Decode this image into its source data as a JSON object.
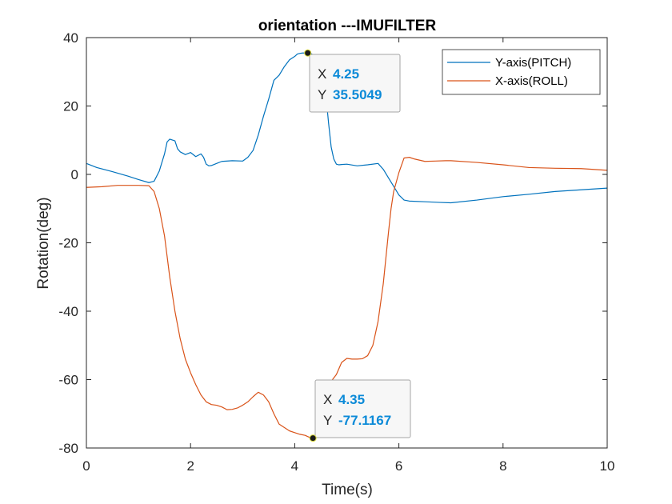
{
  "chart_data": {
    "type": "line",
    "title": "orientation ---IMUFILTER",
    "xlabel": "Time(s)",
    "ylabel": "Rotation(deg)",
    "xlim": [
      0,
      10
    ],
    "ylim": [
      -80,
      40
    ],
    "xticks": [
      0,
      2,
      4,
      6,
      8,
      10
    ],
    "yticks": [
      40,
      20,
      0,
      -20,
      -40,
      -60,
      -80
    ],
    "grid": false,
    "legend_position": "top-right",
    "series": [
      {
        "name": "Y-axis(PITCH)",
        "color": "#0072BD",
        "x": [
          0,
          0.2,
          0.5,
          0.8,
          1.0,
          1.2,
          1.3,
          1.4,
          1.5,
          1.55,
          1.6,
          1.7,
          1.75,
          1.8,
          1.9,
          2.0,
          2.1,
          2.2,
          2.25,
          2.3,
          2.35,
          2.4,
          2.5,
          2.6,
          2.8,
          3.0,
          3.1,
          3.2,
          3.3,
          3.4,
          3.5,
          3.6,
          3.7,
          3.8,
          3.9,
          4.0,
          4.05,
          4.1,
          4.15,
          4.2,
          4.25,
          4.3,
          4.35,
          4.45,
          4.5,
          4.6,
          4.65,
          4.7,
          4.75,
          4.8,
          4.85,
          4.9,
          5.0,
          5.2,
          5.4,
          5.6,
          5.7,
          5.8,
          5.9,
          6.0,
          6.1,
          6.2,
          6.5,
          6.8,
          7.0,
          7.5,
          8.0,
          8.5,
          9.0,
          9.5,
          10.0
        ],
        "values": [
          3.2,
          2.0,
          0.8,
          -0.5,
          -1.5,
          -2.4,
          -2.0,
          1.0,
          6.0,
          9.5,
          10.3,
          9.8,
          7.5,
          6.6,
          5.8,
          6.4,
          5.2,
          6.0,
          5.0,
          3.0,
          2.5,
          2.6,
          3.2,
          3.8,
          4.0,
          3.9,
          5.0,
          7.0,
          11.5,
          17.0,
          22.0,
          27.5,
          29.0,
          31.5,
          33.5,
          34.5,
          35.2,
          35.4,
          35.5,
          35.5,
          35.5,
          35.4,
          35.0,
          33.0,
          30.0,
          23.0,
          15.0,
          8.0,
          4.5,
          3.0,
          2.8,
          2.9,
          3.0,
          2.5,
          2.8,
          3.2,
          1.5,
          -1.0,
          -3.5,
          -6.0,
          -7.5,
          -7.8,
          -8.0,
          -8.2,
          -8.3,
          -7.5,
          -6.5,
          -5.8,
          -5.0,
          -4.5,
          -4.0
        ]
      },
      {
        "name": "X-axis(ROLL)",
        "color": "#D95319",
        "x": [
          0,
          0.3,
          0.6,
          1.0,
          1.2,
          1.3,
          1.4,
          1.5,
          1.55,
          1.6,
          1.7,
          1.8,
          1.9,
          2.0,
          2.1,
          2.2,
          2.3,
          2.4,
          2.5,
          2.6,
          2.7,
          2.8,
          2.9,
          3.0,
          3.1,
          3.2,
          3.3,
          3.4,
          3.5,
          3.6,
          3.7,
          3.8,
          3.9,
          4.0,
          4.1,
          4.2,
          4.3,
          4.35,
          4.4,
          4.5,
          4.6,
          4.7,
          4.8,
          4.9,
          5.0,
          5.1,
          5.2,
          5.3,
          5.4,
          5.5,
          5.6,
          5.7,
          5.8,
          5.85,
          5.9,
          6.0,
          6.1,
          6.2,
          6.3,
          6.5,
          6.7,
          6.9,
          7.0,
          7.5,
          8.0,
          8.5,
          9.0,
          9.5,
          10.0
        ],
        "values": [
          -3.8,
          -3.6,
          -3.2,
          -3.2,
          -3.3,
          -5.0,
          -10.0,
          -18.0,
          -24.0,
          -30.0,
          -40.0,
          -48.0,
          -54.0,
          -58.0,
          -61.5,
          -64.5,
          -66.5,
          -67.3,
          -67.5,
          -68.0,
          -68.8,
          -68.7,
          -68.3,
          -67.5,
          -66.5,
          -65.0,
          -63.7,
          -64.5,
          -66.5,
          -70.0,
          -73.0,
          -74.0,
          -75.0,
          -75.5,
          -76.0,
          -76.3,
          -77.0,
          -77.1,
          -76.5,
          -72.0,
          -65.0,
          -60.5,
          -58.5,
          -55.0,
          -53.8,
          -54.0,
          -54.0,
          -53.9,
          -53.0,
          -50.0,
          -43.0,
          -32.0,
          -17.0,
          -10.0,
          -5.0,
          0.5,
          4.8,
          5.0,
          4.5,
          3.8,
          3.9,
          4.0,
          4.0,
          3.5,
          2.8,
          2.0,
          1.8,
          1.7,
          1.2
        ]
      }
    ],
    "datatips": [
      {
        "x_key": "X",
        "x_value": "4.25",
        "y_key": "Y",
        "y_value": "35.5049",
        "x": 4.25,
        "y": 35.5049
      },
      {
        "x_key": "X",
        "x_value": "4.35",
        "y_key": "Y",
        "y_value": "-77.1167",
        "x": 4.35,
        "y": -77.1167
      }
    ]
  },
  "colors": {
    "axis": "#262626",
    "datatip_value": "#0B8AD8",
    "datatip_border": "#A6A6A6",
    "datatip_bg": "#F7F7F7"
  }
}
